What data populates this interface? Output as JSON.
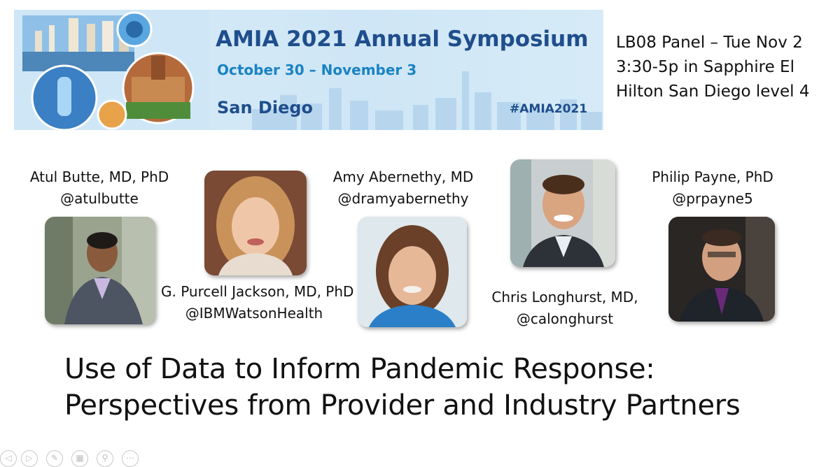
{
  "banner": {
    "title": "AMIA 2021 Annual Symposium",
    "dates": "October 30 – November 3",
    "city": "San Diego",
    "hashtag": "#AMIA2021"
  },
  "session": {
    "line1": "LB08 Panel – Tue Nov 2",
    "line2": "3:30-5p in Sapphire El",
    "line3": "Hilton San Diego level 4"
  },
  "panelists": [
    {
      "name": "Atul Butte, MD, PhD",
      "handle": "@atulbutte"
    },
    {
      "name": "G. Purcell Jackson, MD, PhD",
      "handle": "@IBMWatsonHealth"
    },
    {
      "name": "Amy Abernethy, MD",
      "handle": "@dramyabernethy"
    },
    {
      "name": "Chris Longhurst, MD,",
      "handle": "@calonghurst"
    },
    {
      "name": "Philip Payne, PhD",
      "handle": "@prpayne5"
    }
  ],
  "talk": {
    "line1": "Use of Data to Inform Pandemic Response:",
    "line2": "Perspectives from Provider and Industry Partners"
  },
  "controls": [
    {
      "icon": "back-icon",
      "glyph": "◁"
    },
    {
      "icon": "forward-icon",
      "glyph": "▷"
    },
    {
      "icon": "pen-icon",
      "glyph": "✎"
    },
    {
      "icon": "slides-icon",
      "glyph": "▦"
    },
    {
      "icon": "zoom-icon",
      "glyph": "⚲"
    },
    {
      "icon": "more-icon",
      "glyph": "⋯"
    }
  ]
}
